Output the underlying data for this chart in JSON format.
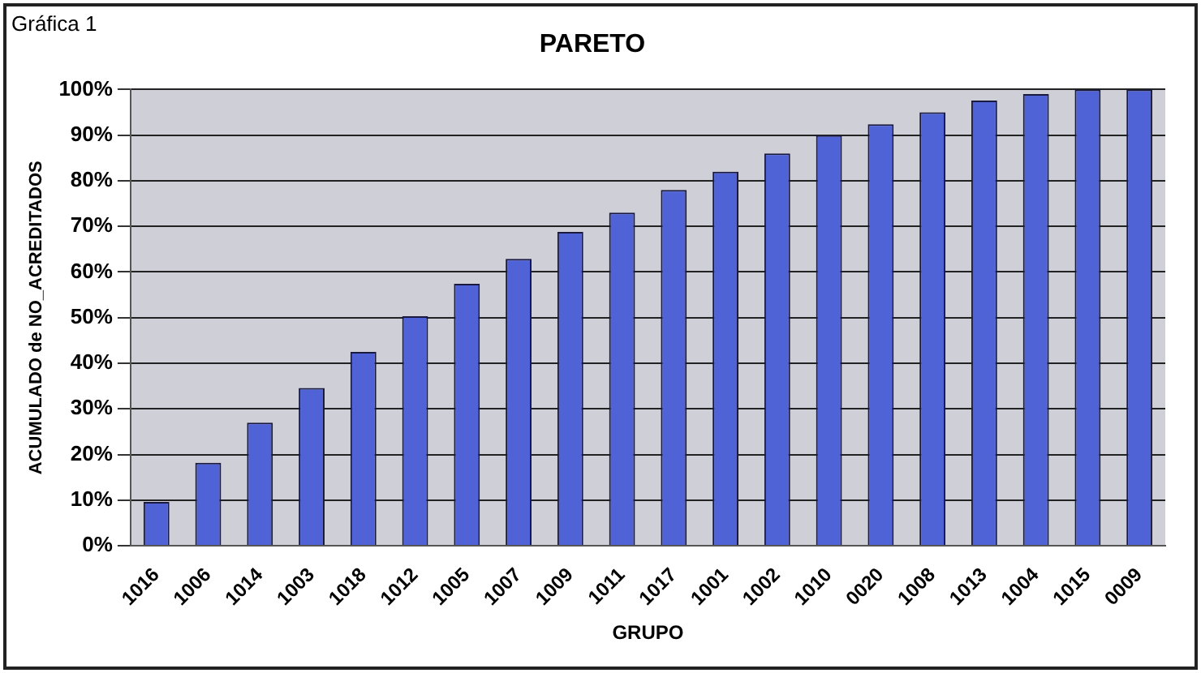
{
  "chart_data": {
    "type": "bar",
    "title": "PARETO",
    "xlabel": "GRUPO",
    "ylabel": "ACUMULADO de NO_ACREDITADOS",
    "annotations": [
      "Gráfica 1"
    ],
    "categories": [
      "1016",
      "1006",
      "1014",
      "1003",
      "1018",
      "1012",
      "1005",
      "1007",
      "1009",
      "1011",
      "1017",
      "1001",
      "1002",
      "1010",
      "0020",
      "1008",
      "1013",
      "1004",
      "1015",
      "0009"
    ],
    "values": [
      9.6,
      18.2,
      27,
      34.6,
      42.5,
      50.3,
      57.4,
      62.9,
      68.8,
      73,
      78,
      82,
      86,
      90,
      92.4,
      95,
      97.6,
      99,
      100,
      100
    ],
    "color": "#4f63d6",
    "ylim": [
      0,
      100
    ],
    "yticks": [
      {
        "value": 0,
        "label": "0%"
      },
      {
        "value": 10,
        "label": "10%"
      },
      {
        "value": 20,
        "label": "20%"
      },
      {
        "value": 30,
        "label": "30%"
      },
      {
        "value": 40,
        "label": "40%"
      },
      {
        "value": 50,
        "label": "50%"
      },
      {
        "value": 60,
        "label": "60%"
      },
      {
        "value": 70,
        "label": "70%"
      },
      {
        "value": 80,
        "label": "80%"
      },
      {
        "value": 90,
        "label": "90%"
      },
      {
        "value": 100,
        "label": "100%"
      }
    ],
    "grid": "y",
    "legend": false
  }
}
